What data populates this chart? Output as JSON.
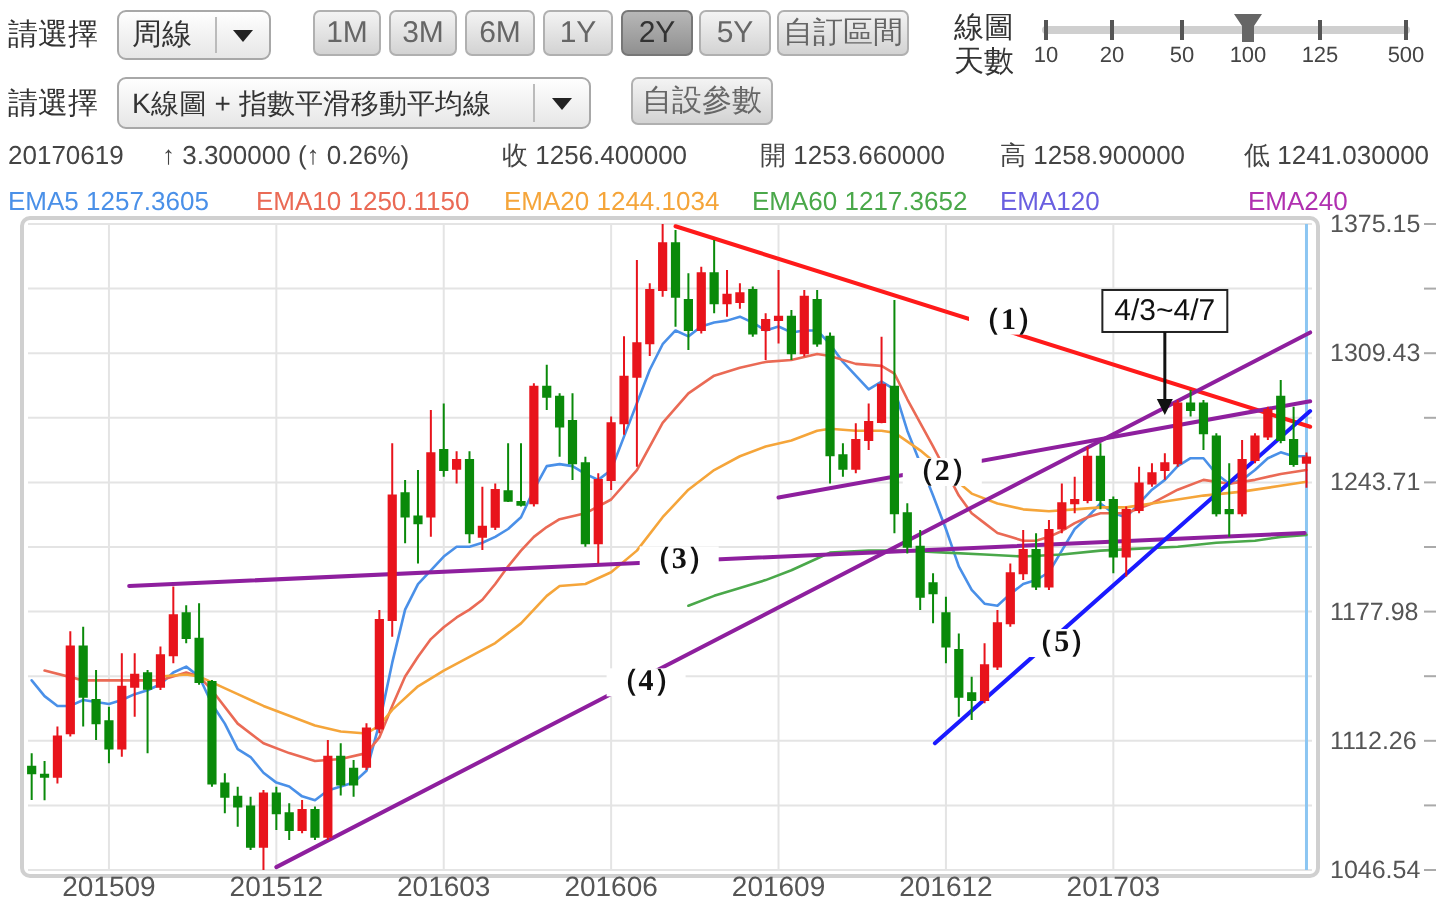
{
  "chart_data": {
    "type": "candlestick",
    "x": [
      "2015-07-27",
      "2015-08-03",
      "2015-08-10",
      "2015-08-17",
      "2015-08-24",
      "2015-08-31",
      "2015-09-07",
      "2015-09-14",
      "2015-09-21",
      "2015-09-28",
      "2015-10-05",
      "2015-10-12",
      "2015-10-19",
      "2015-10-26",
      "2015-11-02",
      "2015-11-09",
      "2015-11-16",
      "2015-11-23",
      "2015-11-30",
      "2015-12-07",
      "2015-12-14",
      "2015-12-21",
      "2015-12-28",
      "2016-01-04",
      "2016-01-11",
      "2016-01-18",
      "2016-01-25",
      "2016-02-01",
      "2016-02-08",
      "2016-02-15",
      "2016-02-22",
      "2016-02-29",
      "2016-03-07",
      "2016-03-14",
      "2016-03-21",
      "2016-03-28",
      "2016-04-04",
      "2016-04-11",
      "2016-04-18",
      "2016-04-25",
      "2016-05-02",
      "2016-05-09",
      "2016-05-16",
      "2016-05-23",
      "2016-05-30",
      "2016-06-06",
      "2016-06-13",
      "2016-06-20",
      "2016-06-27",
      "2016-07-04",
      "2016-07-11",
      "2016-07-18",
      "2016-07-25",
      "2016-08-01",
      "2016-08-08",
      "2016-08-15",
      "2016-08-22",
      "2016-08-29",
      "2016-09-05",
      "2016-09-12",
      "2016-09-19",
      "2016-09-26",
      "2016-10-03",
      "2016-10-10",
      "2016-10-17",
      "2016-10-24",
      "2016-10-31",
      "2016-11-07",
      "2016-11-14",
      "2016-11-21",
      "2016-11-28",
      "2016-12-05",
      "2016-12-12",
      "2016-12-19",
      "2016-12-26",
      "2017-01-02",
      "2017-01-09",
      "2017-01-16",
      "2017-01-23",
      "2017-01-30",
      "2017-02-06",
      "2017-02-13",
      "2017-02-20",
      "2017-02-27",
      "2017-03-06",
      "2017-03-13",
      "2017-03-20",
      "2017-03-27",
      "2017-04-03",
      "2017-04-10",
      "2017-04-17",
      "2017-04-24",
      "2017-05-01",
      "2017-05-08",
      "2017-05-15",
      "2017-05-22",
      "2017-05-29",
      "2017-06-05",
      "2017-06-12",
      "2017-06-19"
    ],
    "ohlc": [
      [
        1099.1,
        1105.9,
        1082.2,
        1095.7
      ],
      [
        1095.0,
        1102.0,
        1082.0,
        1094.0
      ],
      [
        1094.0,
        1119.5,
        1090.6,
        1114.4
      ],
      [
        1116.1,
        1168.0,
        1114.4,
        1160.2
      ],
      [
        1160.2,
        1170.3,
        1119.5,
        1134.7
      ],
      [
        1133.0,
        1148.3,
        1112.7,
        1121.2
      ],
      [
        1122.2,
        1129.6,
        1100.8,
        1108.3
      ],
      [
        1108.3,
        1156.8,
        1104.2,
        1139.8
      ],
      [
        1139.8,
        1156.8,
        1124.5,
        1145.9
      ],
      [
        1146.6,
        1148.3,
        1105.9,
        1138.8
      ],
      [
        1139.8,
        1160.2,
        1138.1,
        1155.8
      ],
      [
        1155.8,
        1190.7,
        1151.7,
        1176.1
      ],
      [
        1177.1,
        1181.2,
        1161.9,
        1164.6
      ],
      [
        1164.2,
        1182.2,
        1140.8,
        1142.2
      ],
      [
        1142.2,
        1143.2,
        1088.9,
        1090.6
      ],
      [
        1090.6,
        1095.7,
        1075.4,
        1083.8
      ],
      [
        1083.8,
        1088.9,
        1068.6,
        1078.8
      ],
      [
        1078.8,
        1083.8,
        1056.7,
        1058.4
      ],
      [
        1058.4,
        1087.2,
        1046.54,
        1085.5
      ],
      [
        1085.5,
        1088.9,
        1066.9,
        1075.4
      ],
      [
        1075.4,
        1080.5,
        1061.8,
        1066.9
      ],
      [
        1066.9,
        1082.2,
        1065.2,
        1077.1
      ],
      [
        1077.1,
        1078.8,
        1061.8,
        1063.5
      ],
      [
        1063.5,
        1112.7,
        1061.8,
        1104.2
      ],
      [
        1104.2,
        1111.0,
        1084.5,
        1090.0
      ],
      [
        1098.1,
        1102.5,
        1083.8,
        1090.0
      ],
      [
        1099.1,
        1121.2,
        1097.4,
        1118.5
      ],
      [
        1118.5,
        1178.8,
        1116.1,
        1173.7
      ],
      [
        1173.7,
        1263.6,
        1165.2,
        1237.1
      ],
      [
        1238.2,
        1244.9,
        1212.7,
        1226.3
      ],
      [
        1226.3,
        1250.0,
        1202.5,
        1222.9
      ],
      [
        1226.3,
        1280.5,
        1216.1,
        1258.5
      ],
      [
        1260.2,
        1283.9,
        1246.6,
        1250.0
      ],
      [
        1250.7,
        1259.5,
        1243.2,
        1255.1
      ],
      [
        1255.1,
        1259.5,
        1212.7,
        1217.8
      ],
      [
        1216.1,
        1241.5,
        1209.3,
        1221.2
      ],
      [
        1221.2,
        1243.2,
        1219.5,
        1239.8
      ],
      [
        1239.2,
        1263.6,
        1233.7,
        1234.4
      ],
      [
        1233.7,
        1263.6,
        1231.4,
        1232.4
      ],
      [
        1233.1,
        1294.1,
        1231.4,
        1292.4
      ],
      [
        1292.4,
        1303.6,
        1280.5,
        1287.3
      ],
      [
        1287.3,
        1289.0,
        1256.8,
        1272.1
      ],
      [
        1275.0,
        1289.0,
        1244.9,
        1253.4
      ],
      [
        1253.4,
        1256.8,
        1211.0,
        1212.7
      ],
      [
        1212.7,
        1248.3,
        1202.5,
        1244.9
      ],
      [
        1244.9,
        1277.2,
        1239.8,
        1273.8
      ],
      [
        1273.8,
        1318.0,
        1268.0,
        1297.5
      ],
      [
        1297.5,
        1356.8,
        1251.7,
        1314.5
      ],
      [
        1314.5,
        1345.0,
        1308.0,
        1341.6
      ],
      [
        1341.6,
        1375.15,
        1338.2,
        1365.3
      ],
      [
        1365.3,
        1372.1,
        1322.9,
        1338.2
      ],
      [
        1336.5,
        1350.1,
        1311.1,
        1321.2
      ],
      [
        1321.2,
        1353.4,
        1319.5,
        1350.1
      ],
      [
        1350.1,
        1367.0,
        1329.7,
        1334.8
      ],
      [
        1334.8,
        1351.8,
        1328.0,
        1339.2
      ],
      [
        1335.5,
        1345.0,
        1332.0,
        1339.9
      ],
      [
        1341.6,
        1343.3,
        1317.8,
        1319.5
      ],
      [
        1321.2,
        1329.7,
        1306.0,
        1326.3
      ],
      [
        1326.3,
        1351.8,
        1314.4,
        1328.0
      ],
      [
        1328.0,
        1331.4,
        1306.0,
        1309.4
      ],
      [
        1309.4,
        1341.6,
        1307.7,
        1338.2
      ],
      [
        1336.5,
        1341.6,
        1312.7,
        1314.4
      ],
      [
        1317.8,
        1320.0,
        1243.2,
        1257.5
      ],
      [
        1257.5,
        1263.6,
        1246.6,
        1250.7
      ],
      [
        1250.7,
        1273.8,
        1248.3,
        1265.3
      ],
      [
        1265.3,
        1283.9,
        1260.2,
        1274.4
      ],
      [
        1274.4,
        1317.8,
        1273.8,
        1293.4
      ],
      [
        1292.4,
        1336.5,
        1217.8,
        1228.0
      ],
      [
        1228.0,
        1233.1,
        1207.6,
        1211.0
      ],
      [
        1211.0,
        1219.5,
        1178.8,
        1185.6
      ],
      [
        1192.4,
        1197.5,
        1172.0,
        1187.3
      ],
      [
        1177.1,
        1185.6,
        1151.7,
        1160.2
      ],
      [
        1158.5,
        1166.9,
        1124.5,
        1134.7
      ],
      [
        1136.4,
        1144.9,
        1122.9,
        1133.0
      ],
      [
        1133.0,
        1161.9,
        1131.3,
        1150.7
      ],
      [
        1150.0,
        1178.8,
        1148.3,
        1172.0
      ],
      [
        1172.0,
        1202.5,
        1170.3,
        1197.5
      ],
      [
        1197.5,
        1219.5,
        1194.1,
        1209.3
      ],
      [
        1209.3,
        1217.8,
        1189.0,
        1190.7
      ],
      [
        1190.7,
        1224.6,
        1189.0,
        1219.5
      ],
      [
        1220.2,
        1243.2,
        1217.8,
        1233.1
      ],
      [
        1233.1,
        1246.6,
        1228.0,
        1234.8
      ],
      [
        1234.8,
        1261.9,
        1233.1,
        1256.8
      ],
      [
        1256.8,
        1263.6,
        1230.0,
        1234.8
      ],
      [
        1234.8,
        1236.5,
        1197.5,
        1206.0
      ],
      [
        1206.0,
        1231.4,
        1195.8,
        1229.7
      ],
      [
        1229.7,
        1251.7,
        1228.0,
        1243.2
      ],
      [
        1243.2,
        1253.4,
        1241.5,
        1248.3
      ],
      [
        1250.0,
        1258.5,
        1245.0,
        1253.4
      ],
      [
        1253.4,
        1285.6,
        1251.7,
        1283.9
      ],
      [
        1283.9,
        1290.7,
        1277.2,
        1280.5
      ],
      [
        1283.9,
        1285.6,
        1260.2,
        1268.7
      ],
      [
        1267.0,
        1268.7,
        1226.3,
        1228.0
      ],
      [
        1229.7,
        1253.4,
        1216.1,
        1228.0
      ],
      [
        1228.0,
        1265.3,
        1226.3,
        1255.1
      ],
      [
        1255.1,
        1268.7,
        1253.4,
        1267.0
      ],
      [
        1267.0,
        1282.2,
        1265.3,
        1280.5
      ],
      [
        1287.3,
        1295.8,
        1263.6,
        1265.3
      ],
      [
        1265.3,
        1282.2,
        1251.7,
        1253.1
      ],
      [
        1253.66,
        1258.9,
        1241.03,
        1256.4
      ]
    ],
    "colors": [
      "#0a8a0a",
      "#0a8a0a",
      "#e8141c",
      "#e8141c",
      "#0a8a0a",
      "#0a8a0a",
      "#0a8a0a",
      "#e8141c",
      "#e8141c",
      "#0a8a0a",
      "#e8141c",
      "#e8141c",
      "#0a8a0a",
      "#0a8a0a",
      "#0a8a0a",
      "#0a8a0a",
      "#0a8a0a",
      "#0a8a0a",
      "#e8141c",
      "#0a8a0a",
      "#0a8a0a",
      "#e8141c",
      "#0a8a0a",
      "#e8141c",
      "#0a8a0a",
      "#0a8a0a",
      "#e8141c",
      "#e8141c",
      "#e8141c",
      "#0a8a0a",
      "#0a8a0a",
      "#e8141c",
      "#0a8a0a",
      "#e8141c",
      "#0a8a0a",
      "#e8141c",
      "#e8141c",
      "#0a8a0a",
      "#0a8a0a",
      "#e8141c",
      "#0a8a0a",
      "#0a8a0a",
      "#0a8a0a",
      "#0a8a0a",
      "#e8141c",
      "#e8141c",
      "#e8141c",
      "#e8141c",
      "#e8141c",
      "#e8141c",
      "#0a8a0a",
      "#0a8a0a",
      "#e8141c",
      "#0a8a0a",
      "#e8141c",
      "#e8141c",
      "#0a8a0a",
      "#e8141c",
      "#e8141c",
      "#0a8a0a",
      "#e8141c",
      "#0a8a0a",
      "#0a8a0a",
      "#0a8a0a",
      "#e8141c",
      "#e8141c",
      "#e8141c",
      "#0a8a0a",
      "#0a8a0a",
      "#0a8a0a",
      "#0a8a0a",
      "#0a8a0a",
      "#0a8a0a",
      "#0a8a0a",
      "#e8141c",
      "#e8141c",
      "#e8141c",
      "#e8141c",
      "#0a8a0a",
      "#e8141c",
      "#e8141c",
      "#e8141c",
      "#e8141c",
      "#0a8a0a",
      "#0a8a0a",
      "#e8141c",
      "#e8141c",
      "#e8141c",
      "#e8141c",
      "#e8141c",
      "#0a8a0a",
      "#0a8a0a",
      "#0a8a0a",
      "#0a8a0a",
      "#e8141c",
      "#e8141c",
      "#e8141c",
      "#0a8a0a",
      "#0a8a0a",
      "#e8141c"
    ],
    "series": [
      {
        "name": "EMA5 1257.3605",
        "type": "line",
        "color": "#4a90e8",
        "x": [
          "2015-07-27",
          "2015-08-03",
          "2015-08-10",
          "2015-08-17",
          "2015-08-24",
          "2015-08-31",
          "2015-09-07",
          "2015-09-14",
          "2015-09-21",
          "2015-09-28",
          "2015-10-05",
          "2015-10-12",
          "2015-10-19",
          "2015-10-26",
          "2015-11-02",
          "2015-11-09",
          "2015-11-16",
          "2015-11-23",
          "2015-11-30",
          "2015-12-07",
          "2015-12-14",
          "2015-12-21",
          "2015-12-28",
          "2016-01-04",
          "2016-01-11",
          "2016-01-18",
          "2016-01-25",
          "2016-02-01",
          "2016-02-08",
          "2016-02-15",
          "2016-02-22",
          "2016-02-29",
          "2016-03-07",
          "2016-03-14",
          "2016-03-21",
          "2016-03-28",
          "2016-04-04",
          "2016-04-11",
          "2016-04-18",
          "2016-04-25",
          "2016-05-02",
          "2016-05-09",
          "2016-05-16",
          "2016-05-23",
          "2016-05-30",
          "2016-06-06",
          "2016-06-13",
          "2016-06-20",
          "2016-06-27",
          "2016-07-04",
          "2016-07-11",
          "2016-07-18",
          "2016-07-25",
          "2016-08-01",
          "2016-08-08",
          "2016-08-15",
          "2016-08-22",
          "2016-08-29",
          "2016-09-05",
          "2016-09-12",
          "2016-09-19",
          "2016-09-26",
          "2016-10-03",
          "2016-10-10",
          "2016-10-17",
          "2016-10-24",
          "2016-10-31",
          "2016-11-07",
          "2016-11-14",
          "2016-11-28",
          "2016-12-05",
          "2016-12-12",
          "2016-12-19",
          "2016-12-26",
          "2017-01-02",
          "2017-01-09",
          "2017-01-16",
          "2017-01-23",
          "2017-01-30",
          "2017-02-06",
          "2017-02-13",
          "2017-02-20",
          "2017-02-27",
          "2017-03-06",
          "2017-03-13",
          "2017-03-20",
          "2017-03-27",
          "2017-04-03",
          "2017-04-10",
          "2017-04-17",
          "2017-04-24",
          "2017-05-01",
          "2017-05-08",
          "2017-05-15",
          "2017-05-22",
          "2017-05-29",
          "2017-06-05",
          "2017-06-12",
          "2017-06-19"
        ],
        "values": [
          1143,
          1135,
          1130,
          1130,
          1133,
          1132,
          1131,
          1133,
          1136,
          1138,
          1141,
          1147,
          1150,
          1145,
          1131,
          1121,
          1108,
          1104,
          1096,
          1091,
          1089,
          1084,
          1082,
          1087,
          1089,
          1091,
          1097,
          1121,
          1152,
          1179,
          1192,
          1199,
          1206,
          1211,
          1211,
          1213,
          1216,
          1220,
          1226,
          1240,
          1252,
          1253,
          1252,
          1248,
          1245,
          1250,
          1267,
          1284,
          1301,
          1314,
          1321,
          1318,
          1323,
          1325,
          1326,
          1328,
          1325,
          1321,
          1323,
          1320,
          1321,
          1321,
          1314,
          1305,
          1298,
          1291,
          1295,
          1291,
          1270,
          1237,
          1220,
          1201,
          1189,
          1182,
          1181,
          1187,
          1192,
          1194,
          1198,
          1209,
          1220,
          1226,
          1233,
          1228,
          1226,
          1233,
          1240,
          1245,
          1252,
          1256,
          1256,
          1248,
          1243,
          1245,
          1250,
          1256,
          1259,
          1257,
          1257
        ]
      },
      {
        "name": "EMA10 1250.1150",
        "type": "line",
        "color": "#ea6a55",
        "x": [
          "2015-08-03",
          "2015-08-24",
          "2015-09-14",
          "2015-10-05",
          "2015-10-19",
          "2015-10-26",
          "2015-11-02",
          "2015-11-16",
          "2015-11-30",
          "2015-12-14",
          "2015-12-28",
          "2016-01-11",
          "2016-01-25",
          "2016-02-01",
          "2016-02-08",
          "2016-02-15",
          "2016-02-22",
          "2016-02-29",
          "2016-03-07",
          "2016-03-14",
          "2016-03-21",
          "2016-03-28",
          "2016-04-04",
          "2016-04-11",
          "2016-04-18",
          "2016-04-25",
          "2016-05-02",
          "2016-05-09",
          "2016-05-23",
          "2016-06-06",
          "2016-06-20",
          "2016-07-04",
          "2016-07-18",
          "2016-08-01",
          "2016-08-15",
          "2016-08-29",
          "2016-09-12",
          "2016-09-26",
          "2016-10-03",
          "2016-10-17",
          "2016-10-31",
          "2016-11-07",
          "2016-11-14",
          "2016-11-21",
          "2016-11-28",
          "2016-12-12",
          "2016-12-19",
          "2016-12-26",
          "2017-01-02",
          "2017-01-09",
          "2017-01-16",
          "2017-01-23",
          "2017-01-30",
          "2017-02-06",
          "2017-02-13",
          "2017-02-20",
          "2017-02-27",
          "2017-03-13",
          "2017-03-27",
          "2017-04-10",
          "2017-04-24",
          "2017-05-08",
          "2017-05-22",
          "2017-06-05",
          "2017-06-19"
        ],
        "values": [
          1148,
          1143,
          1143,
          1143,
          1147,
          1145,
          1138,
          1121,
          1111,
          1106,
          1102,
          1103,
          1106,
          1114,
          1130,
          1145,
          1155,
          1164,
          1170,
          1175,
          1179,
          1184,
          1192,
          1201,
          1209,
          1216,
          1221,
          1225,
          1228,
          1235,
          1250,
          1274,
          1289,
          1298,
          1302,
          1305,
          1306,
          1309,
          1308,
          1304,
          1303,
          1299,
          1286,
          1274,
          1262,
          1237,
          1228,
          1223,
          1218,
          1216,
          1214,
          1214,
          1216,
          1219,
          1223,
          1226,
          1228,
          1228,
          1233,
          1240,
          1245,
          1243,
          1245,
          1248,
          1250
        ]
      },
      {
        "name": "EMA20 1244.1034",
        "type": "line",
        "color": "#f5a53a",
        "x": [
          "2015-10-05",
          "2015-10-19",
          "2015-10-26",
          "2015-11-02",
          "2015-11-16",
          "2015-11-30",
          "2015-12-14",
          "2015-12-28",
          "2016-01-11",
          "2016-01-25",
          "2016-02-01",
          "2016-02-08",
          "2016-02-22",
          "2016-03-07",
          "2016-03-21",
          "2016-04-04",
          "2016-04-18",
          "2016-05-02",
          "2016-05-09",
          "2016-05-23",
          "2016-06-06",
          "2016-06-20",
          "2016-07-04",
          "2016-07-18",
          "2016-08-01",
          "2016-08-15",
          "2016-08-29",
          "2016-09-12",
          "2016-09-26",
          "2016-10-03",
          "2016-10-17",
          "2016-10-31",
          "2016-11-07",
          "2016-11-21",
          "2016-12-19",
          "2017-01-02",
          "2017-01-16",
          "2017-01-30",
          "2017-02-13",
          "2017-02-27",
          "2017-03-13",
          "2017-04-03",
          "2017-04-24",
          "2017-05-15",
          "2017-06-05",
          "2017-06-19"
        ],
        "values": [
          1145,
          1146,
          1145,
          1142,
          1136,
          1130,
          1125,
          1120,
          1117,
          1116,
          1120,
          1128,
          1140,
          1148,
          1155,
          1162,
          1172,
          1186,
          1191,
          1192,
          1198,
          1209,
          1226,
          1240,
          1250,
          1257,
          1262,
          1265,
          1270,
          1271,
          1270,
          1270,
          1269,
          1260,
          1238,
          1233,
          1230,
          1229,
          1230,
          1231,
          1231,
          1234,
          1237,
          1239,
          1242,
          1244
        ]
      },
      {
        "name": "EMA60 1217.3652",
        "type": "line",
        "color": "#4aa84a",
        "x": [
          "2016-07-18",
          "2016-08-01",
          "2016-08-15",
          "2016-08-29",
          "2016-09-12",
          "2016-09-26",
          "2016-10-03",
          "2016-10-24",
          "2016-11-14",
          "2016-12-05",
          "2016-12-26",
          "2017-01-16",
          "2017-02-06",
          "2017-02-27",
          "2017-03-20",
          "2017-04-10",
          "2017-05-01",
          "2017-05-22",
          "2017-06-05",
          "2017-06-19"
        ],
        "values": [
          1181,
          1186,
          1190,
          1194,
          1199,
          1205,
          1208,
          1209,
          1209,
          1208,
          1207,
          1206,
          1207,
          1209,
          1210,
          1211,
          1213,
          1214,
          1216,
          1217
        ]
      },
      {
        "name": "EMA120",
        "type": "line",
        "color": "#6a5fe0",
        "values": [
          null,
          null,
          null,
          null,
          null,
          null,
          null,
          null,
          null,
          null,
          null,
          null,
          null,
          null,
          null,
          null,
          null,
          null,
          null,
          null,
          null,
          null,
          null,
          null,
          null,
          null,
          null,
          null,
          null,
          null,
          null,
          null,
          null,
          null,
          null,
          null,
          null,
          null,
          null,
          null,
          null,
          null,
          null,
          null,
          null,
          null,
          null,
          null,
          null,
          null,
          null,
          null,
          null,
          null,
          null,
          null,
          null,
          null,
          null,
          null,
          null,
          null,
          null,
          null,
          null,
          null,
          null,
          null,
          null,
          null,
          null,
          null,
          null,
          null,
          null,
          null,
          null,
          null,
          null,
          null,
          null,
          null,
          null,
          null,
          null,
          null,
          null,
          null,
          null,
          null,
          null,
          null,
          null,
          null,
          null,
          null,
          null,
          null,
          null,
          null
        ]
      },
      {
        "name": "EMA240",
        "type": "line",
        "color": "#b030b0",
        "values": [
          null,
          null,
          null,
          null,
          null,
          null,
          null,
          null,
          null,
          null,
          null,
          null,
          null,
          null,
          null,
          null,
          null,
          null,
          null,
          null,
          null,
          null,
          null,
          null,
          null,
          null,
          null,
          null,
          null,
          null,
          null,
          null,
          null,
          null,
          null,
          null,
          null,
          null,
          null,
          null,
          null,
          null,
          null,
          null,
          null,
          null,
          null,
          null,
          null,
          null,
          null,
          null,
          null,
          null,
          null,
          null,
          null,
          null,
          null,
          null,
          null,
          null,
          null,
          null,
          null,
          null,
          null,
          null,
          null,
          null,
          null,
          null,
          null,
          null,
          null,
          null,
          null,
          null,
          null,
          null,
          null,
          null,
          null,
          null,
          null,
          null,
          null,
          null,
          null,
          null,
          null,
          null,
          null,
          null,
          null,
          null,
          null,
          null,
          null,
          null
        ]
      },
      {
        "type": "line",
        "color": "#ff1a1a",
        "x": [
          "2016-07-11",
          "2017-06-21"
        ],
        "values": [
          1374,
          1272
        ]
      },
      {
        "type": "line",
        "color": "#8e1f9e",
        "x": [
          "2016-09-05",
          "2017-06-21"
        ],
        "values": [
          1236,
          1285
        ]
      },
      {
        "type": "line",
        "color": "#8e1f9e",
        "x": [
          "2015-09-18",
          "2017-06-18"
        ],
        "values": [
          1191,
          1218
        ]
      },
      {
        "type": "line",
        "color": "#8e1f9e",
        "x": [
          "2015-12-07",
          "2017-06-21"
        ],
        "values": [
          1048,
          1320
        ]
      },
      {
        "type": "line",
        "color": "#1a1aff",
        "x": [
          "2016-11-29",
          "2017-06-21"
        ],
        "values": [
          1111,
          1280
        ]
      }
    ],
    "xlim": [
      "2015-07-25",
      "2017-06-22"
    ],
    "xticks": [
      {
        "value": "2015-09-07",
        "label": "201509"
      },
      {
        "value": "2015-12-07",
        "label": "201512"
      },
      {
        "value": "2016-03-07",
        "label": "201603"
      },
      {
        "value": "2016-06-06",
        "label": "201606"
      },
      {
        "value": "2016-09-05",
        "label": "201609"
      },
      {
        "value": "2016-12-05",
        "label": "201612"
      },
      {
        "value": "2017-03-06",
        "label": "201703"
      }
    ],
    "ylim": [
      1046.54,
      1375.15
    ],
    "yticks": [
      1375.15,
      {
        "value": 1342.29,
        "label": null
      },
      1309.43,
      {
        "value": 1276.57,
        "label": null
      },
      1243.71,
      {
        "value": 1210.845,
        "label": null
      },
      1177.98,
      {
        "value": 1145.12,
        "label": null
      },
      1112.26,
      {
        "value": 1079.4,
        "label": null
      },
      1046.54
    ],
    "grid": true,
    "legend": "top",
    "ref_lines": [
      {
        "axis": "x",
        "value": "2017-06-19",
        "color": "#8cc6f2"
      }
    ],
    "annotations": [
      "請選擇",
      "周線",
      "1M",
      "3M",
      "6M",
      "1Y",
      "2Y",
      "5Y",
      "自訂區間",
      "線圖天數",
      "10",
      "20",
      "50",
      "100",
      "125",
      "500",
      "請選擇",
      "K線圖 + 指數平滑移動平均線",
      "自設參數",
      "20170619",
      "↑ 3.300000 (↑ 0.26%)",
      "收 1256.400000",
      "開 1253.660000",
      "高 1258.900000",
      "低 1241.030000",
      {
        "text": "（1）",
        "x": "2017-01-08",
        "y": 1326
      },
      {
        "text": "（2）",
        "x": "2016-12-03",
        "y": 1249
      },
      {
        "text": "（3）",
        "x": "2016-07-13",
        "y": 1204
      },
      {
        "text": "（4）",
        "x": "2016-06-25",
        "y": 1142
      },
      {
        "text": "（5）",
        "x": "2017-02-06",
        "y": 1162
      },
      {
        "text": "4/3~4/7",
        "x": "2017-04-03",
        "y": 1278
      }
    ]
  }
}
